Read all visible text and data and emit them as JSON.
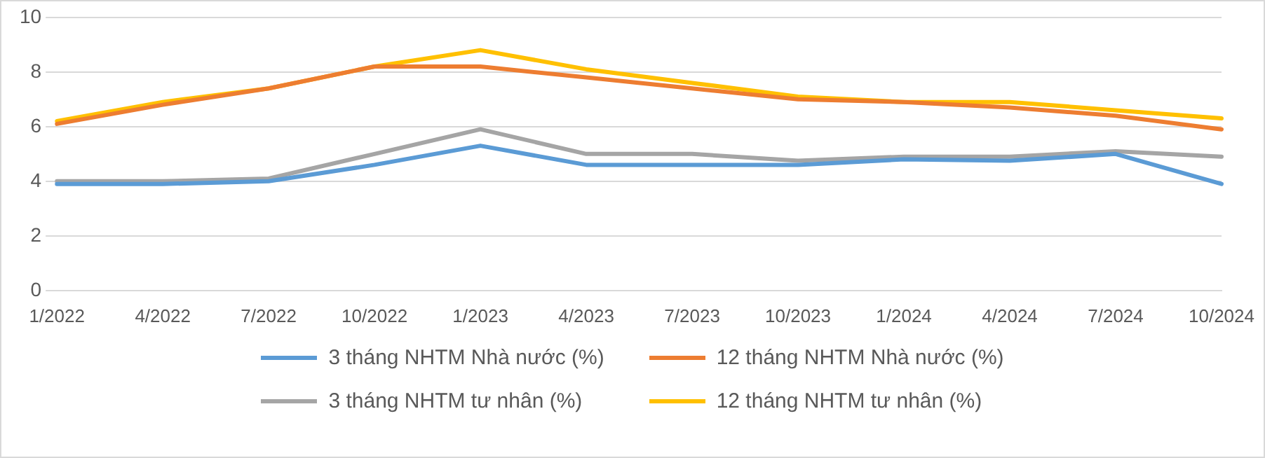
{
  "chart_data": {
    "type": "line",
    "categories": [
      "1/2022",
      "4/2022",
      "7/2022",
      "10/2022",
      "1/2023",
      "4/2023",
      "7/2023",
      "10/2023",
      "1/2024",
      "4/2024",
      "7/2024",
      "10/2024"
    ],
    "series": [
      {
        "name": "3 tháng NHTM Nhà nước (%)",
        "color": "#5b9bd5",
        "values": [
          3.9,
          3.9,
          4.0,
          4.6,
          5.3,
          4.6,
          4.6,
          4.6,
          4.8,
          4.75,
          5.0,
          3.9
        ]
      },
      {
        "name": "12 tháng NHTM Nhà nước (%)",
        "color": "#ed7d31",
        "values": [
          6.1,
          6.8,
          7.4,
          8.2,
          8.2,
          7.8,
          7.4,
          7.0,
          6.9,
          6.7,
          6.4,
          5.9
        ]
      },
      {
        "name": "3 tháng NHTM tư nhân (%)",
        "color": "#a5a5a5",
        "values": [
          4.0,
          4.0,
          4.1,
          5.0,
          5.9,
          5.0,
          5.0,
          4.75,
          4.9,
          4.9,
          5.1,
          4.9
        ]
      },
      {
        "name": "12 tháng NHTM tư nhân (%)",
        "color": "#ffc000",
        "values": [
          6.2,
          6.9,
          7.4,
          8.2,
          8.8,
          8.1,
          7.6,
          7.1,
          6.9,
          6.9,
          6.6,
          6.3
        ]
      }
    ],
    "ylim": [
      0,
      10
    ],
    "yticks": [
      0,
      2,
      4,
      6,
      8,
      10
    ],
    "grid": "y",
    "legend": "bottom",
    "marker": "none",
    "line_style": "solid"
  }
}
